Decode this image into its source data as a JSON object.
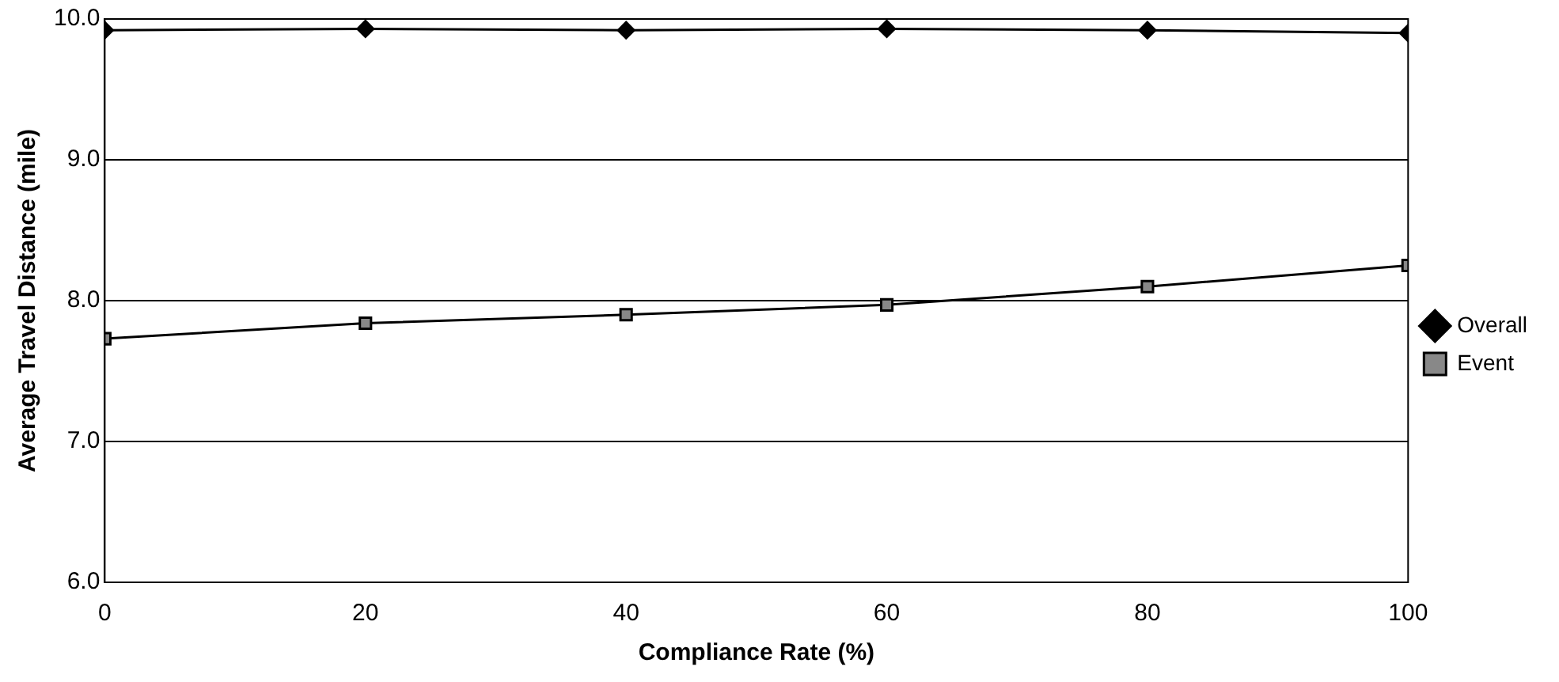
{
  "chart_data": {
    "type": "line",
    "xlabel": "Compliance Rate (%)",
    "ylabel": "Average Travel Distance (mile)",
    "x": [
      0,
      20,
      40,
      60,
      80,
      100
    ],
    "series": [
      {
        "name": "Overall",
        "color": "#000000",
        "marker": "diamond",
        "values": [
          9.92,
          9.93,
          9.92,
          9.93,
          9.92,
          9.9
        ]
      },
      {
        "name": "Event",
        "color": "#000000",
        "marker": "square",
        "values": [
          7.73,
          7.84,
          7.9,
          7.97,
          8.1,
          8.25
        ]
      }
    ],
    "xlim": [
      0,
      100
    ],
    "xticks": [
      0,
      20,
      40,
      60,
      80,
      100
    ],
    "ylim": [
      6,
      10
    ],
    "yticks": [
      {
        "value": 6,
        "label": "6.0"
      },
      {
        "value": 7,
        "label": "7.0"
      },
      {
        "value": 8,
        "label": "8.0"
      },
      {
        "value": 9,
        "label": "9.0"
      },
      {
        "value": 10,
        "label": "10.0"
      }
    ],
    "grid": "y",
    "legend": "right",
    "line_style": "solid"
  }
}
